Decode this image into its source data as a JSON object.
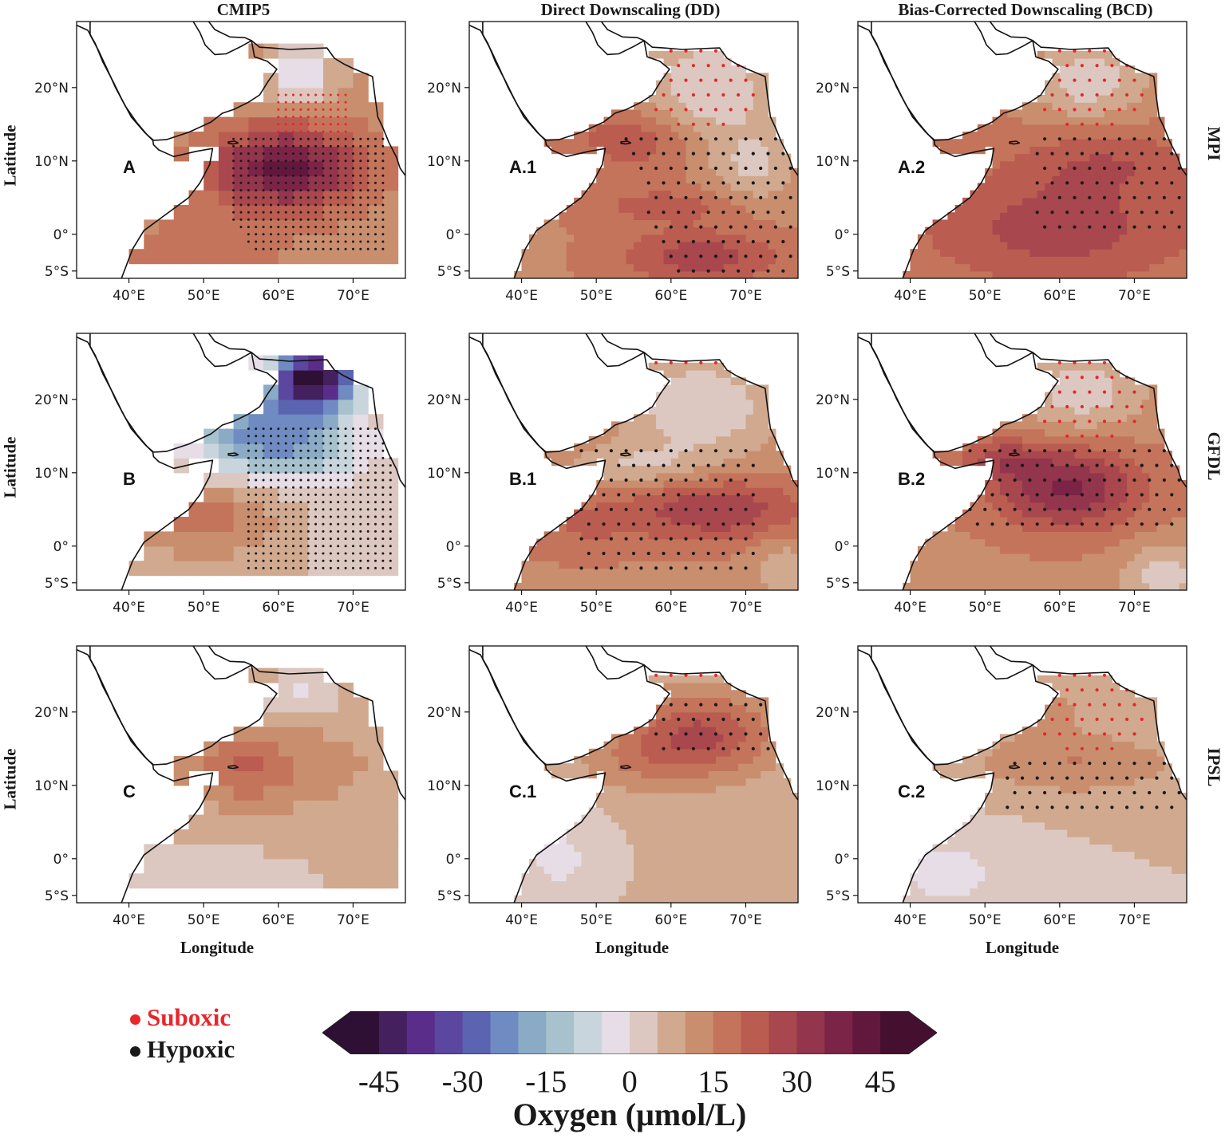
{
  "columns": [
    "CMIP5",
    "Direct Downscaling (DD)",
    "Bias-Corrected Downscaling (BCD)"
  ],
  "rows": [
    "MPI",
    "GFDL",
    "IPSL"
  ],
  "axis": {
    "ylabel": "Latitude",
    "xlabel": "Longitude",
    "lat_ticks": [
      "20°N",
      "10°N",
      "0°",
      "5°S"
    ],
    "lon_ticks": [
      "40°E",
      "50°E",
      "60°E",
      "70°E"
    ]
  },
  "panels": [
    {
      "label": "A",
      "row": 0,
      "col": 0,
      "style": "coarse",
      "scheme": "mpi_cmip"
    },
    {
      "label": "A.1",
      "row": 0,
      "col": 1,
      "style": "fine",
      "scheme": "mpi_dd"
    },
    {
      "label": "A.2",
      "row": 0,
      "col": 2,
      "style": "fine",
      "scheme": "mpi_bcd"
    },
    {
      "label": "B",
      "row": 1,
      "col": 0,
      "style": "coarse",
      "scheme": "gfdl_cmip"
    },
    {
      "label": "B.1",
      "row": 1,
      "col": 1,
      "style": "fine",
      "scheme": "gfdl_dd"
    },
    {
      "label": "B.2",
      "row": 1,
      "col": 2,
      "style": "fine",
      "scheme": "gfdl_bcd"
    },
    {
      "label": "C",
      "row": 2,
      "col": 0,
      "style": "coarse",
      "scheme": "ipsl_cmip"
    },
    {
      "label": "C.1",
      "row": 2,
      "col": 1,
      "style": "fine",
      "scheme": "ipsl_dd"
    },
    {
      "label": "C.2",
      "row": 2,
      "col": 2,
      "style": "fine",
      "scheme": "ipsl_bcd"
    }
  ],
  "legend": {
    "suboxic": {
      "label": "Suboxic",
      "color": "#e8262b"
    },
    "hypoxic": {
      "label": "Hypoxic",
      "color": "#1a1a1a"
    }
  },
  "colorbar": {
    "title": "Oxygen (μmol/L)",
    "ticks": [
      "-45",
      "-30",
      "-15",
      "0",
      "15",
      "30",
      "45"
    ],
    "tick_values": [
      -45,
      -30,
      -15,
      0,
      15,
      30,
      45
    ],
    "min": -50,
    "max": 50,
    "step": 5,
    "colors": [
      "#2e1035",
      "#44205f",
      "#5a2d8a",
      "#5b46a0",
      "#5a64b0",
      "#6f8bc2",
      "#8aaac6",
      "#a7c2cd",
      "#c9d5dc",
      "#e6dde6",
      "#dcc8c0",
      "#d0a98f",
      "#c98e6e",
      "#c4745a",
      "#bb5c50",
      "#a8474d",
      "#93354d",
      "#7c2447",
      "#62183c",
      "#45102f"
    ]
  }
}
